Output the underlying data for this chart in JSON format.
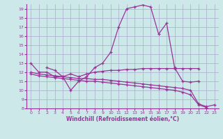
{
  "background_color": "#cce8e8",
  "grid_color": "#aaaacc",
  "line_color": "#993399",
  "xlabel": "Windchill (Refroidissement éolien,°C)",
  "xmin": -0.5,
  "xmax": 23.5,
  "ymin": 8,
  "ymax": 19.5,
  "series": [
    {
      "x": [
        0,
        1,
        2,
        3,
        4,
        5,
        6,
        7,
        8,
        9,
        10,
        11,
        12,
        13,
        14,
        15,
        16,
        17,
        18,
        19,
        20,
        21
      ],
      "y": [
        13,
        12,
        12,
        11.5,
        11.5,
        10,
        11,
        11.5,
        12.5,
        13,
        14.2,
        17,
        19.0,
        19.2,
        19.4,
        19.2,
        16.2,
        17.4,
        12.5,
        11,
        10.9,
        11
      ]
    },
    {
      "x": [
        2,
        3,
        4,
        5,
        6,
        7,
        8,
        9,
        10,
        11,
        12,
        13,
        14,
        15,
        16,
        17,
        18,
        19,
        20,
        21
      ],
      "y": [
        12.5,
        12.2,
        11.5,
        11.8,
        11.5,
        11.8,
        12.0,
        12.1,
        12.2,
        12.2,
        12.3,
        12.3,
        12.4,
        12.4,
        12.4,
        12.4,
        12.4,
        12.4,
        12.4,
        12.4
      ]
    },
    {
      "x": [
        0,
        1,
        2,
        3,
        4,
        5,
        6,
        7,
        8,
        9,
        10,
        11,
        12,
        13,
        14,
        15,
        16,
        17,
        18,
        19,
        20,
        21,
        22,
        23
      ],
      "y": [
        12,
        11.8,
        11.7,
        11.6,
        11.5,
        11.4,
        11.3,
        11.3,
        11.2,
        11.2,
        11.1,
        11.0,
        10.9,
        10.8,
        10.7,
        10.6,
        10.5,
        10.4,
        10.3,
        10.2,
        10.0,
        8.5,
        8.2,
        8.4
      ]
    },
    {
      "x": [
        0,
        1,
        2,
        3,
        4,
        5,
        6,
        7,
        8,
        9,
        10,
        11,
        12,
        13,
        14,
        15,
        16,
        17,
        18,
        19,
        20,
        21,
        22
      ],
      "y": [
        11.8,
        11.6,
        11.5,
        11.4,
        11.3,
        11.2,
        11.1,
        11.0,
        11.0,
        10.9,
        10.8,
        10.7,
        10.6,
        10.5,
        10.4,
        10.3,
        10.2,
        10.1,
        10.0,
        9.8,
        9.5,
        8.4,
        8.1
      ]
    }
  ]
}
